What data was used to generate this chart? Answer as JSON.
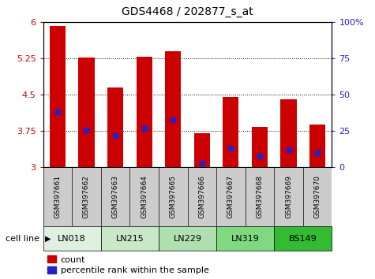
{
  "title": "GDS4468 / 202877_s_at",
  "samples": [
    "GSM397661",
    "GSM397662",
    "GSM397663",
    "GSM397664",
    "GSM397665",
    "GSM397666",
    "GSM397667",
    "GSM397668",
    "GSM397669",
    "GSM397670"
  ],
  "cell_line_labels": [
    "LN018",
    "LN215",
    "LN229",
    "LN319",
    "BS149"
  ],
  "cell_line_spans": [
    [
      0,
      2
    ],
    [
      2,
      4
    ],
    [
      4,
      6
    ],
    [
      6,
      8
    ],
    [
      8,
      10
    ]
  ],
  "count_values": [
    5.93,
    5.27,
    4.65,
    5.28,
    5.4,
    3.71,
    4.45,
    3.84,
    4.4,
    3.88
  ],
  "percentile_values": [
    38,
    26,
    22,
    27,
    33,
    3,
    13,
    8,
    12,
    10
  ],
  "ylim_left": [
    3.0,
    6.0
  ],
  "ylim_right": [
    0,
    100
  ],
  "yticks_left": [
    3.0,
    3.75,
    4.5,
    5.25,
    6.0
  ],
  "ytick_labels_left": [
    "3",
    "3.75",
    "4.5",
    "5.25",
    "6"
  ],
  "yticks_right": [
    0,
    25,
    50,
    75,
    100
  ],
  "ytick_labels_right": [
    "0",
    "25",
    "50",
    "75",
    "100%"
  ],
  "bar_color": "#cc0000",
  "dot_color": "#2222cc",
  "bar_width": 0.55,
  "bar_bottom": 3.0,
  "legend_count_label": "count",
  "legend_pct_label": "percentile rank within the sample",
  "cell_line_row_label": "cell line",
  "cl_bg_colors": [
    "#e0f0e0",
    "#c8e8c8",
    "#b0e0b0",
    "#80d880",
    "#33bb33"
  ],
  "sample_bg_color": "#cccccc",
  "plot_bg_color": "#ffffff",
  "grid_dotted_color": "#000000"
}
